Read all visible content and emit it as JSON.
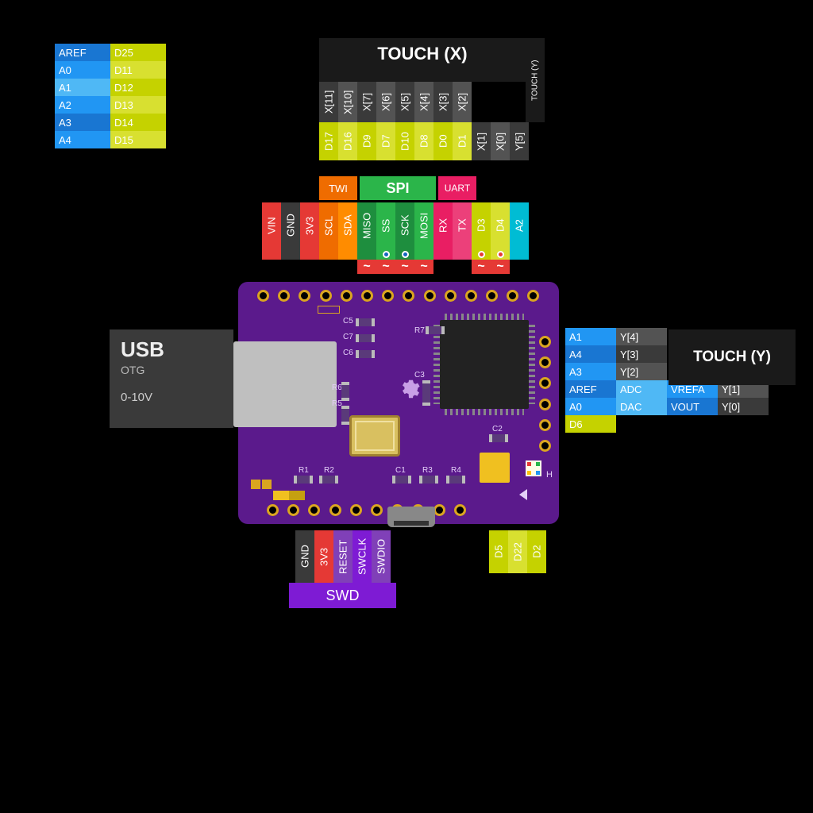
{
  "background": "#000000",
  "colors": {
    "pcb": "#5b1a8c",
    "pcb_light": "#8040b8",
    "copper": "#daa520",
    "silk": "#ffffff",
    "chip": "#2a2a2a",
    "crystal": "#f0c040",
    "usb_metal": "#c0c0c0",
    "blue": "#2196f3",
    "blue_light": "#4fb8f5",
    "yellow": "#c5d200",
    "yellow_light": "#d8e030",
    "dark_grey": "#3a3a3a",
    "grey": "#535353",
    "red": "#e53935",
    "orange": "#ef6c00",
    "orange_light": "#ff8c00",
    "green": "#2bb54a",
    "green_dark": "#1e8e3e",
    "magenta": "#e91e63",
    "pink": "#ec407a",
    "cyan": "#00bcd4",
    "purple": "#7e1bd4",
    "purple_dark": "#5b1a8c"
  },
  "top_left_table": {
    "rows": [
      {
        "a": "AREF",
        "a_bg": "#1976d2",
        "d": "D25",
        "d_bg": "#c5d200"
      },
      {
        "a": "A0",
        "a_bg": "#2196f3",
        "d": "D11",
        "d_bg": "#d8e030"
      },
      {
        "a": "A1",
        "a_bg": "#4fb8f5",
        "d": "D12",
        "d_bg": "#c5d200"
      },
      {
        "a": "A2",
        "a_bg": "#2196f3",
        "d": "D13",
        "d_bg": "#d8e030"
      },
      {
        "a": "A3",
        "a_bg": "#1976d2",
        "d": "D14",
        "d_bg": "#c5d200"
      },
      {
        "a": "A4",
        "a_bg": "#2196f3",
        "d": "D15",
        "d_bg": "#d8e030"
      }
    ]
  },
  "touch_x": {
    "title": "TOUCH (X)",
    "side_label": "TOUCH (Y)",
    "top_row": [
      "X[11]",
      "X[10]",
      "X[7]",
      "X[6]",
      "X[5]",
      "X[4]",
      "X[3]",
      "X[2]",
      "",
      "",
      ""
    ],
    "bottom_row": [
      {
        "t": "D17",
        "bg": "#c5d200"
      },
      {
        "t": "D16",
        "bg": "#d8e030"
      },
      {
        "t": "D9",
        "bg": "#c5d200"
      },
      {
        "t": "D7",
        "bg": "#d8e030"
      },
      {
        "t": "D10",
        "bg": "#c5d200"
      },
      {
        "t": "D8",
        "bg": "#d8e030"
      },
      {
        "t": "D0",
        "bg": "#c5d200"
      },
      {
        "t": "D1",
        "bg": "#d8e030"
      },
      {
        "t": "X[1]",
        "bg": "#3a3a3a"
      },
      {
        "t": "X[0]",
        "bg": "#535353"
      },
      {
        "t": "Y[5]",
        "bg": "#3a3a3a"
      }
    ]
  },
  "protocol_bar": {
    "twi": "TWI",
    "spi": "SPI",
    "uart": "UART"
  },
  "top_pins": [
    {
      "t": "VIN",
      "bg": "#e53935",
      "tilde": false
    },
    {
      "t": "GND",
      "bg": "#3a3a3a",
      "tilde": false
    },
    {
      "t": "3V3",
      "bg": "#e53935",
      "tilde": false
    },
    {
      "t": "SCL",
      "bg": "#ef6c00",
      "tilde": false
    },
    {
      "t": "SDA",
      "bg": "#ff8c00",
      "tilde": false
    },
    {
      "t": "MISO",
      "bg": "#1e8e3e",
      "tilde": true
    },
    {
      "t": "SS",
      "bg": "#2bb54a",
      "tilde": true,
      "dot": "#1565c0"
    },
    {
      "t": "SCK",
      "bg": "#1e8e3e",
      "tilde": true,
      "dot": "#1565c0"
    },
    {
      "t": "MOSI",
      "bg": "#2bb54a",
      "tilde": true
    },
    {
      "t": "RX",
      "bg": "#e91e63",
      "tilde": false
    },
    {
      "t": "TX",
      "bg": "#ec407a",
      "tilde": false
    },
    {
      "t": "D3",
      "bg": "#c5d200",
      "tilde": true,
      "dot": "#e53935"
    },
    {
      "t": "D4",
      "bg": "#d8e030",
      "tilde": true,
      "dot": "#e53935"
    },
    {
      "t": "A2",
      "bg": "#00bcd4",
      "tilde": false
    }
  ],
  "usb_block": {
    "title": "USB",
    "sub": "OTG",
    "volt": "0-10V"
  },
  "touch_y": {
    "title": "TOUCH (Y)",
    "rows": [
      [
        {
          "t": "A1",
          "bg": "#2196f3"
        },
        {
          "t": "Y[4]",
          "bg": "#535353"
        }
      ],
      [
        {
          "t": "A4",
          "bg": "#1976d2"
        },
        {
          "t": "Y[3]",
          "bg": "#3a3a3a"
        }
      ],
      [
        {
          "t": "A3",
          "bg": "#2196f3"
        },
        {
          "t": "Y[2]",
          "bg": "#535353"
        }
      ],
      [
        {
          "t": "AREF",
          "bg": "#1976d2"
        },
        {
          "t": "ADC",
          "bg": "#4fb8f5"
        },
        {
          "t": "VREFA",
          "bg": "#2196f3"
        },
        {
          "t": "Y[1]",
          "bg": "#535353"
        }
      ],
      [
        {
          "t": "A0",
          "bg": "#2196f3"
        },
        {
          "t": "DAC",
          "bg": "#4fb8f5"
        },
        {
          "t": "VOUT",
          "bg": "#1976d2"
        },
        {
          "t": "Y[0]",
          "bg": "#3a3a3a"
        }
      ],
      [
        {
          "t": "D6",
          "bg": "#c5d200"
        }
      ]
    ]
  },
  "swd": {
    "title": "SWD",
    "pins": [
      {
        "t": "GND",
        "bg": "#3a3a3a"
      },
      {
        "t": "3V3",
        "bg": "#e53935"
      },
      {
        "t": "RESET",
        "bg": "#8040b8"
      },
      {
        "t": "SWCLK",
        "bg": "#7e1bd4"
      },
      {
        "t": "SWDIO",
        "bg": "#8040b8"
      }
    ]
  },
  "bottom_right_pins": [
    {
      "t": "D5",
      "bg": "#c5d200"
    },
    {
      "t": "D22",
      "bg": "#d8e030"
    },
    {
      "t": "D2",
      "bg": "#c5d200"
    }
  ],
  "silkscreen": [
    "C5",
    "C7",
    "C6",
    "R6",
    "R5",
    "R1",
    "R2",
    "C1",
    "R3",
    "R4",
    "C3",
    "C2",
    "R7",
    "H"
  ]
}
